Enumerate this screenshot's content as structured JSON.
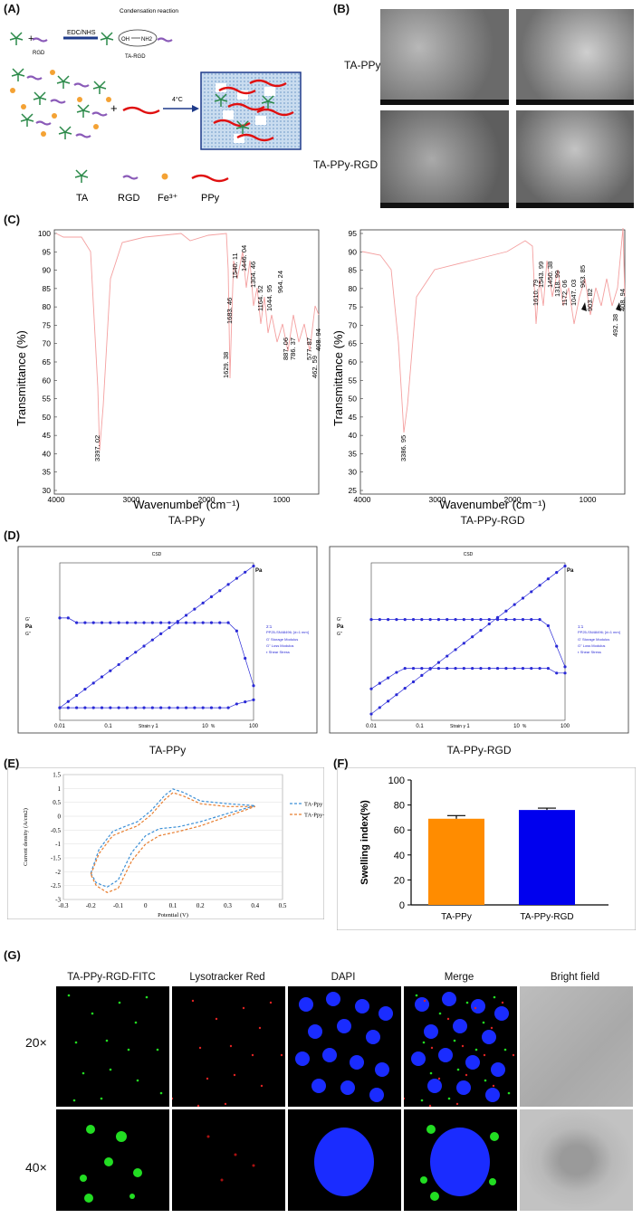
{
  "panels": {
    "a": "(A)",
    "b": "(B)",
    "c": "(C)",
    "d": "(D)",
    "e": "(E)",
    "f": "(F)",
    "g": "(G)"
  },
  "panel_a": {
    "reagent": "EDC/NHS",
    "reaction": "Condensation reaction",
    "oh": "OH",
    "nh2": "NH2",
    "rgd_label": "RGD",
    "ta_rgd_label": "TA-RGD",
    "temp": "4°C",
    "legend": [
      "TA",
      "RGD",
      "Fe³⁺",
      "PPy"
    ]
  },
  "panel_b": {
    "row_labels": [
      "TA-PPy",
      "TA-PPy-RGD"
    ]
  },
  "panel_c": {
    "left": {
      "caption": "TA-PPy",
      "ylabel": "Transmittance (%)",
      "xlabel": "Wavenumber (cm⁻¹)",
      "yticks": [
        "100",
        "95",
        "90",
        "85",
        "80",
        "75",
        "70",
        "65",
        "60",
        "55",
        "50",
        "45",
        "40",
        "35",
        "30"
      ],
      "xticks": [
        "4000",
        "3000",
        "2000",
        "1000"
      ],
      "peaks": [
        "3397. 02",
        "1683. 46",
        "1629. 38",
        "1540. 11",
        "1446. 04",
        "1304. 46",
        "1164. 52",
        "1044. 95",
        "964. 24",
        "887. 06",
        "786. 37",
        "577. 87",
        "462. 59",
        "408. 94"
      ]
    },
    "right": {
      "caption": "TA-PPy-RGD",
      "ylabel": "Transmittance (%)",
      "xlabel": "Wavenumber (cm⁻¹)",
      "yticks": [
        "95",
        "90",
        "85",
        "80",
        "75",
        "70",
        "65",
        "60",
        "55",
        "50",
        "45",
        "40",
        "35",
        "30",
        "25"
      ],
      "xticks": [
        "4000",
        "3000",
        "2000",
        "1000"
      ],
      "peaks": [
        "3386. 95",
        "1610. 79",
        "1543. 99",
        "1450. 38",
        "1318. 99",
        "1172. 06",
        "1047. 03",
        "963. 85",
        "903. 82",
        "492. 38",
        "408. 94"
      ]
    }
  },
  "panel_d": {
    "left_caption": "TA-PPy",
    "right_caption": "TA-PPy-RGD",
    "header": "CSD",
    "left_legend_title": "2:1",
    "right_legend_title": "1:1",
    "legend_sub": "PP25-SN48496; [d=1 mm]",
    "legend_items": [
      "G'  Storage Modulus",
      "G''  Loss Modulus",
      "τ  Shear Stress"
    ],
    "xlabel": "Strain γ",
    "pct": "%",
    "pa": "Pa",
    "gp": "G'",
    "gpp": "G''",
    "xticks": [
      "0.01",
      "0.1",
      "1",
      "10",
      "100"
    ]
  },
  "chart_data": [
    {
      "type": "line",
      "id": "E",
      "title": "",
      "xlabel": "Potential (V)",
      "ylabel": "Current density (A/cm2)",
      "xlim": [
        -0.3,
        0.5
      ],
      "ylim": [
        -3,
        1.5
      ],
      "xticks": [
        "-0.3",
        "-0.2",
        "-0.1",
        "0",
        "0.1",
        "0.2",
        "0.3",
        "0.4",
        "0.5"
      ],
      "yticks": [
        "1.5",
        "1",
        "0.5",
        "0",
        "-0.5",
        "-1",
        "-1.5",
        "-2",
        "-2.5",
        "-3"
      ],
      "series": [
        {
          "name": "TA-Ppy",
          "color": "#3b8fd6",
          "x": [
            -0.2,
            -0.17,
            -0.12,
            -0.07,
            -0.03,
            0.02,
            0.07,
            0.1,
            0.14,
            0.2,
            0.3,
            0.4,
            0.3,
            0.2,
            0.12,
            0.05,
            0,
            -0.05,
            -0.1,
            -0.14,
            -0.18,
            -0.2
          ],
          "y": [
            -2.05,
            -1.2,
            -0.55,
            -0.35,
            -0.2,
            0.2,
            0.75,
            0.98,
            0.85,
            0.55,
            0.45,
            0.38,
            0.1,
            -0.2,
            -0.38,
            -0.45,
            -0.7,
            -1.3,
            -2.3,
            -2.55,
            -2.4,
            -2.05
          ]
        },
        {
          "name": "TA-Ppy-RGD",
          "color": "#e87d2e",
          "x": [
            -0.2,
            -0.17,
            -0.12,
            -0.07,
            -0.03,
            0.02,
            0.07,
            0.1,
            0.14,
            0.2,
            0.3,
            0.4,
            0.3,
            0.2,
            0.12,
            0.05,
            0,
            -0.05,
            -0.1,
            -0.14,
            -0.18,
            -0.2
          ],
          "y": [
            -2.1,
            -1.35,
            -0.7,
            -0.5,
            -0.35,
            0.05,
            0.6,
            0.85,
            0.72,
            0.45,
            0.35,
            0.35,
            0,
            -0.35,
            -0.55,
            -0.7,
            -1.0,
            -1.6,
            -2.6,
            -2.75,
            -2.5,
            -2.1
          ]
        }
      ]
    },
    {
      "type": "bar",
      "id": "F",
      "title": "",
      "xlabel": "",
      "ylabel": "Swelling index(%)",
      "ylim": [
        0,
        100
      ],
      "yticks": [
        "0",
        "20",
        "40",
        "60",
        "80",
        "100"
      ],
      "categories": [
        "TA-PPy",
        "TA-PPy-RGD"
      ],
      "values": [
        69,
        76
      ],
      "errors": [
        2.5,
        1.5
      ],
      "colors": [
        "#ff8c00",
        "#0000ee"
      ]
    }
  ],
  "panel_g": {
    "col_headers": [
      "TA-PPy-RGD-FITC",
      "Lysotracker Red",
      "DAPI",
      "Merge",
      "Bright field"
    ],
    "row_labels": [
      "20×",
      "40×"
    ]
  },
  "colors": {
    "ir_line": "#f4a0a0",
    "rheo": "#2a2ad6",
    "fitc": "#22dd22",
    "lyso": "#dd2222",
    "dapi": "#1a2cff"
  }
}
